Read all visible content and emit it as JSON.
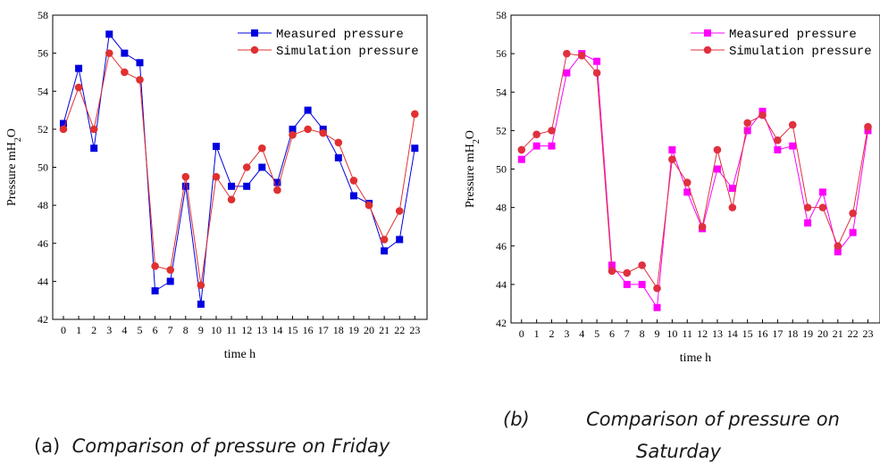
{
  "chart_data": [
    {
      "type": "line",
      "panel": "a",
      "x": [
        0,
        1,
        2,
        3,
        4,
        5,
        6,
        7,
        8,
        9,
        10,
        11,
        12,
        13,
        14,
        15,
        16,
        17,
        18,
        19,
        20,
        21,
        22,
        23
      ],
      "series": [
        {
          "name": "Measured pressure",
          "marker": "square",
          "color": "#0000e0",
          "values": [
            52.3,
            55.2,
            51.0,
            57.0,
            56.0,
            55.5,
            43.5,
            44.0,
            49.0,
            42.8,
            51.1,
            49.0,
            49.0,
            50.0,
            49.2,
            52.0,
            53.0,
            52.0,
            50.5,
            48.5,
            48.1,
            45.6,
            46.2,
            51.0
          ]
        },
        {
          "name": "Simulation pressure",
          "marker": "circle",
          "color": "#e03030",
          "values": [
            52.0,
            54.2,
            52.0,
            56.0,
            55.0,
            54.6,
            44.8,
            44.6,
            49.5,
            43.8,
            49.5,
            48.3,
            50.0,
            51.0,
            48.8,
            51.7,
            52.0,
            51.8,
            51.3,
            49.3,
            48.0,
            46.2,
            47.7,
            52.8
          ]
        }
      ],
      "xlabel": "time h",
      "ylabel": "Pressure mH2O",
      "ylim": [
        42,
        58
      ],
      "yticks": [
        42,
        44,
        46,
        48,
        50,
        52,
        54,
        56,
        58
      ],
      "grid": false,
      "legend_position": "top-right"
    },
    {
      "type": "line",
      "panel": "b",
      "x": [
        0,
        1,
        2,
        3,
        4,
        5,
        6,
        7,
        8,
        9,
        10,
        11,
        12,
        13,
        14,
        15,
        16,
        17,
        18,
        19,
        20,
        21,
        22,
        23
      ],
      "series": [
        {
          "name": "Measured pressure",
          "marker": "square",
          "color": "#ff00ff",
          "values": [
            50.5,
            51.2,
            51.2,
            55.0,
            56.0,
            55.6,
            45.0,
            44.0,
            44.0,
            42.8,
            51.0,
            48.8,
            46.9,
            50.0,
            49.0,
            52.0,
            53.0,
            51.0,
            51.2,
            47.2,
            48.8,
            45.7,
            46.7,
            52.0
          ]
        },
        {
          "name": "Simulation pressure",
          "marker": "circle",
          "color": "#e03040",
          "values": [
            51.0,
            51.8,
            52.0,
            56.0,
            55.9,
            55.0,
            44.7,
            44.6,
            45.0,
            43.8,
            50.5,
            49.3,
            47.0,
            51.0,
            48.0,
            52.4,
            52.8,
            51.5,
            52.3,
            48.0,
            48.0,
            46.0,
            47.7,
            52.2
          ]
        }
      ],
      "xlabel": "time h",
      "ylabel": "Pressure mH2O",
      "ylim": [
        42,
        58
      ],
      "yticks": [
        42,
        44,
        46,
        48,
        50,
        52,
        54,
        56,
        58
      ],
      "grid": false,
      "legend_position": "top-right"
    }
  ],
  "captions": {
    "a_label": "(a)",
    "a_text": "Comparison of pressure on Friday",
    "b_label": "(b)",
    "b_text_line1": "Comparison of pressure on",
    "b_text_line2": "Saturday"
  }
}
